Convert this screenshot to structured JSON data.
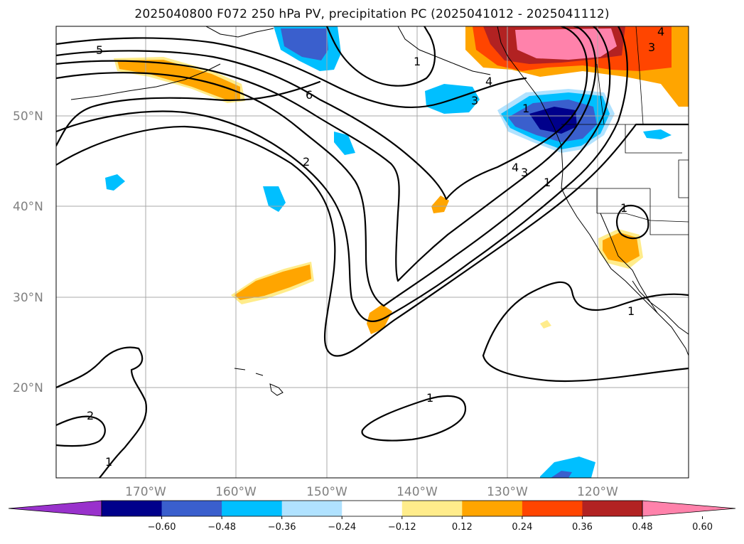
{
  "title": "2025040800 F072 250 hPa PV, precipitation PC (2025041012 - 2025041112)",
  "lat_labels": [
    "50°N",
    "40°N",
    "30°N",
    "20°N"
  ],
  "lon_labels": [
    "170°W",
    "160°W",
    "150°W",
    "140°W",
    "130°W",
    "120°W"
  ],
  "colorbar": {
    "ticks": [
      "−0.60",
      "−0.48",
      "−0.36",
      "−0.24",
      "−0.12",
      "0.12",
      "0.24",
      "0.36",
      "0.48",
      "0.60"
    ],
    "colors": [
      "#9932cc",
      "#00008b",
      "#3a5fcd",
      "#00bfff",
      "#b0e2ff",
      "#ffffff",
      "#ffec8b",
      "#ffa500",
      "#ff4500",
      "#b22222",
      "#ff82ab"
    ]
  },
  "contour_labels": [
    "5",
    "6",
    "2",
    "1",
    "4",
    "3",
    "4",
    "3",
    "4",
    "3",
    "1",
    "1",
    "1",
    "1",
    "2",
    "1",
    "1"
  ]
}
